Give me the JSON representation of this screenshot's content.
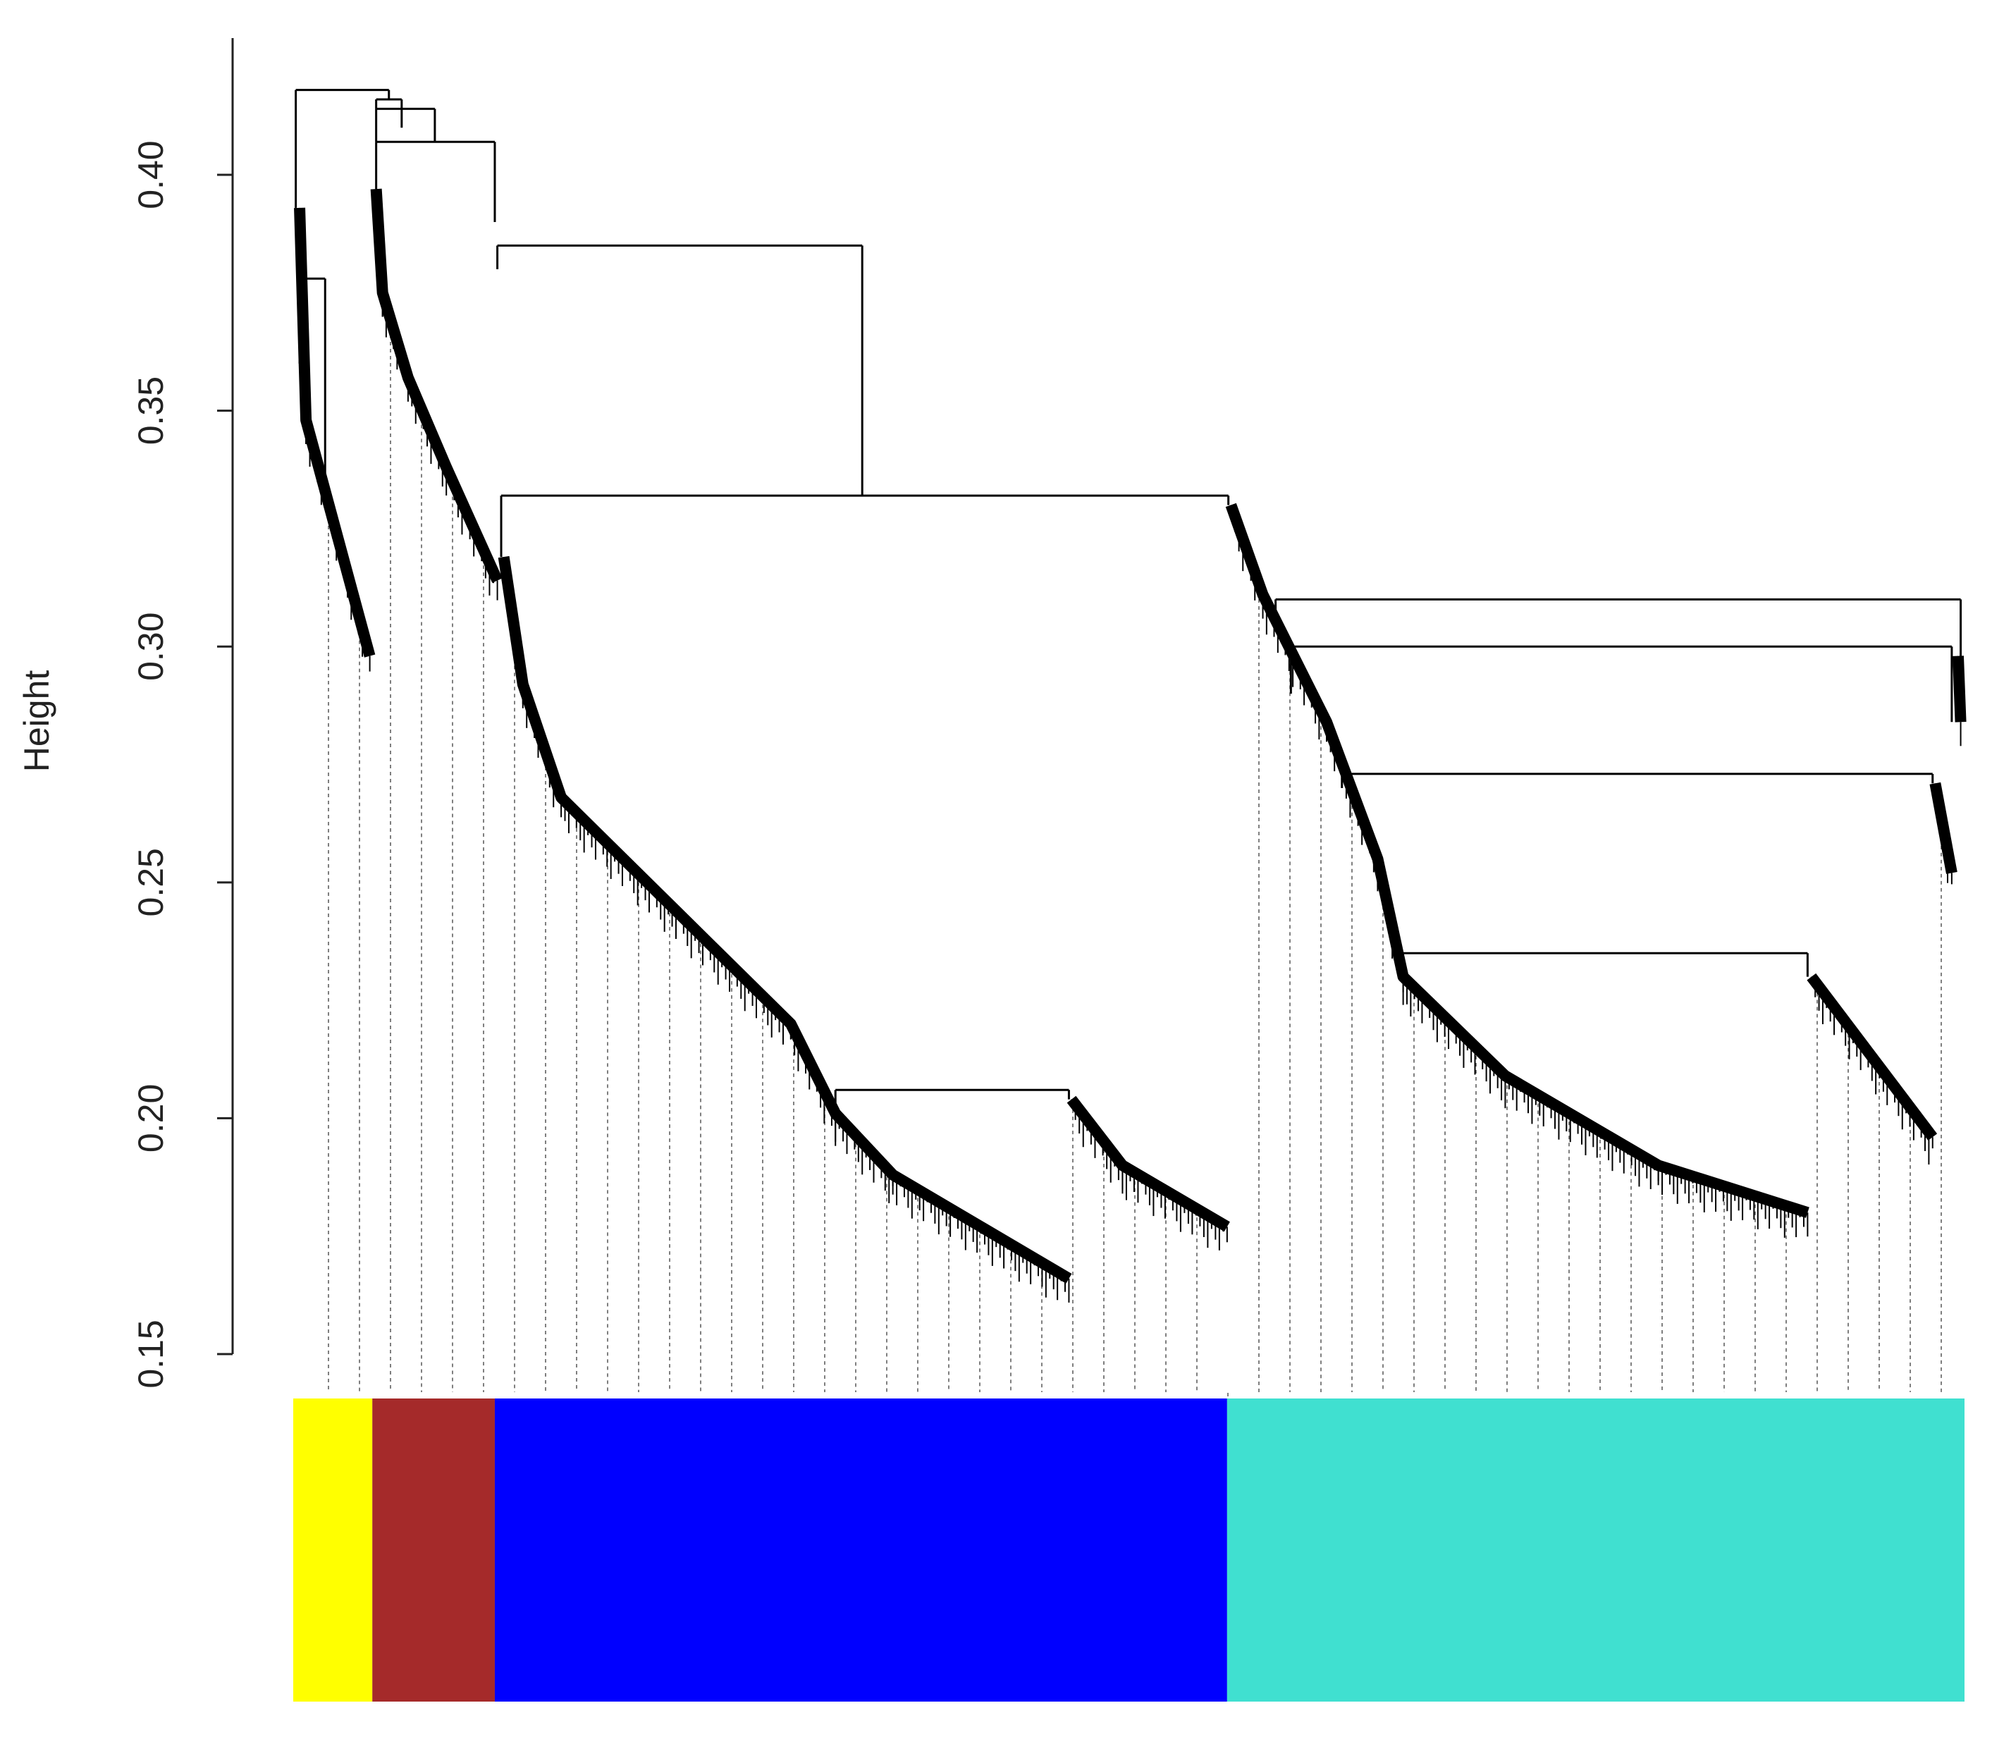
{
  "chart_data": {
    "type": "dendrogram",
    "y_label": "Height",
    "ylim": [
      0.15,
      0.429
    ],
    "yticks": [
      0.15,
      {
        "value": 0.2,
        "label": "0.20"
      },
      0.25,
      {
        "value": 0.3,
        "label": "0.30"
      },
      0.35,
      {
        "value": 0.4,
        "label": "0.40"
      }
    ],
    "line_color": "#000000",
    "modules": [
      {
        "color": "#ffff00",
        "size": 62
      },
      {
        "color": "#a52a2a",
        "size": 96
      },
      {
        "color": "#0000ff",
        "size": 574
      },
      {
        "color": "#40e0d0",
        "size": 578
      }
    ],
    "merges": [
      {
        "height": 0.418,
        "x": [
          2,
          75
        ],
        "from": [
          0.393,
          0.416
        ]
      },
      {
        "height": 0.416,
        "x": [
          65,
          85
        ],
        "from": [
          0.414,
          0.41
        ]
      },
      {
        "height": 0.414,
        "x": [
          65,
          111
        ],
        "from": [
          0.407,
          0.407
        ]
      },
      {
        "height": 0.407,
        "x": [
          65,
          158
        ],
        "from": [
          0.397,
          0.39
        ]
      },
      {
        "height": 0.385,
        "x": [
          160,
          446
        ],
        "from": [
          0.38,
          0.332
        ]
      },
      {
        "height": 0.332,
        "x": [
          163,
          733
        ],
        "from": [
          0.319,
          0.33
        ]
      },
      {
        "height": 0.31,
        "x": [
          770,
          1307
        ],
        "from": [
          0.305,
          0.298
        ]
      },
      {
        "height": 0.3,
        "x": [
          782,
          1300
        ],
        "from": [
          0.29,
          0.284
        ]
      },
      {
        "height": 0.273,
        "x": [
          822,
          1285
        ],
        "from": [
          0.27,
          0.271
        ]
      },
      {
        "height": 0.235,
        "x": [
          868,
          1187
        ],
        "from": [
          0.23,
          0.23
        ]
      },
      {
        "height": 0.206,
        "x": [
          425,
          608
        ],
        "from": [
          0.201,
          0.204
        ]
      },
      {
        "height": 0.378,
        "x": [
          5,
          25
        ],
        "from": [
          0.36,
          0.33
        ]
      }
    ],
    "branches": [
      {
        "points": [
          [
            5,
            0.393
          ],
          [
            10,
            0.348
          ],
          [
            28,
            0.33
          ],
          [
            60,
            0.298
          ]
        ]
      },
      {
        "points": [
          [
            65,
            0.397
          ],
          [
            70,
            0.375
          ],
          [
            90,
            0.357
          ],
          [
            120,
            0.338
          ],
          [
            160,
            0.314
          ]
        ]
      },
      {
        "points": [
          [
            165,
            0.319
          ],
          [
            180,
            0.292
          ],
          [
            210,
            0.268
          ],
          [
            300,
            0.244
          ],
          [
            390,
            0.22
          ],
          [
            425,
            0.201
          ],
          [
            470,
            0.188
          ],
          [
            608,
            0.166
          ]
        ]
      },
      {
        "points": [
          [
            610,
            0.204
          ],
          [
            650,
            0.19
          ],
          [
            732,
            0.177
          ]
        ]
      },
      {
        "points": [
          [
            735,
            0.33
          ],
          [
            760,
            0.311
          ],
          [
            810,
            0.284
          ],
          [
            850,
            0.255
          ],
          [
            870,
            0.23
          ],
          [
            950,
            0.209
          ],
          [
            1070,
            0.19
          ],
          [
            1187,
            0.18
          ]
        ]
      },
      {
        "points": [
          [
            1190,
            0.23
          ],
          [
            1285,
            0.196
          ]
        ]
      },
      {
        "points": [
          [
            1287,
            0.271
          ],
          [
            1300,
            0.252
          ]
        ]
      },
      {
        "points": [
          [
            1305,
            0.298
          ],
          [
            1307,
            0.284
          ]
        ]
      }
    ]
  }
}
